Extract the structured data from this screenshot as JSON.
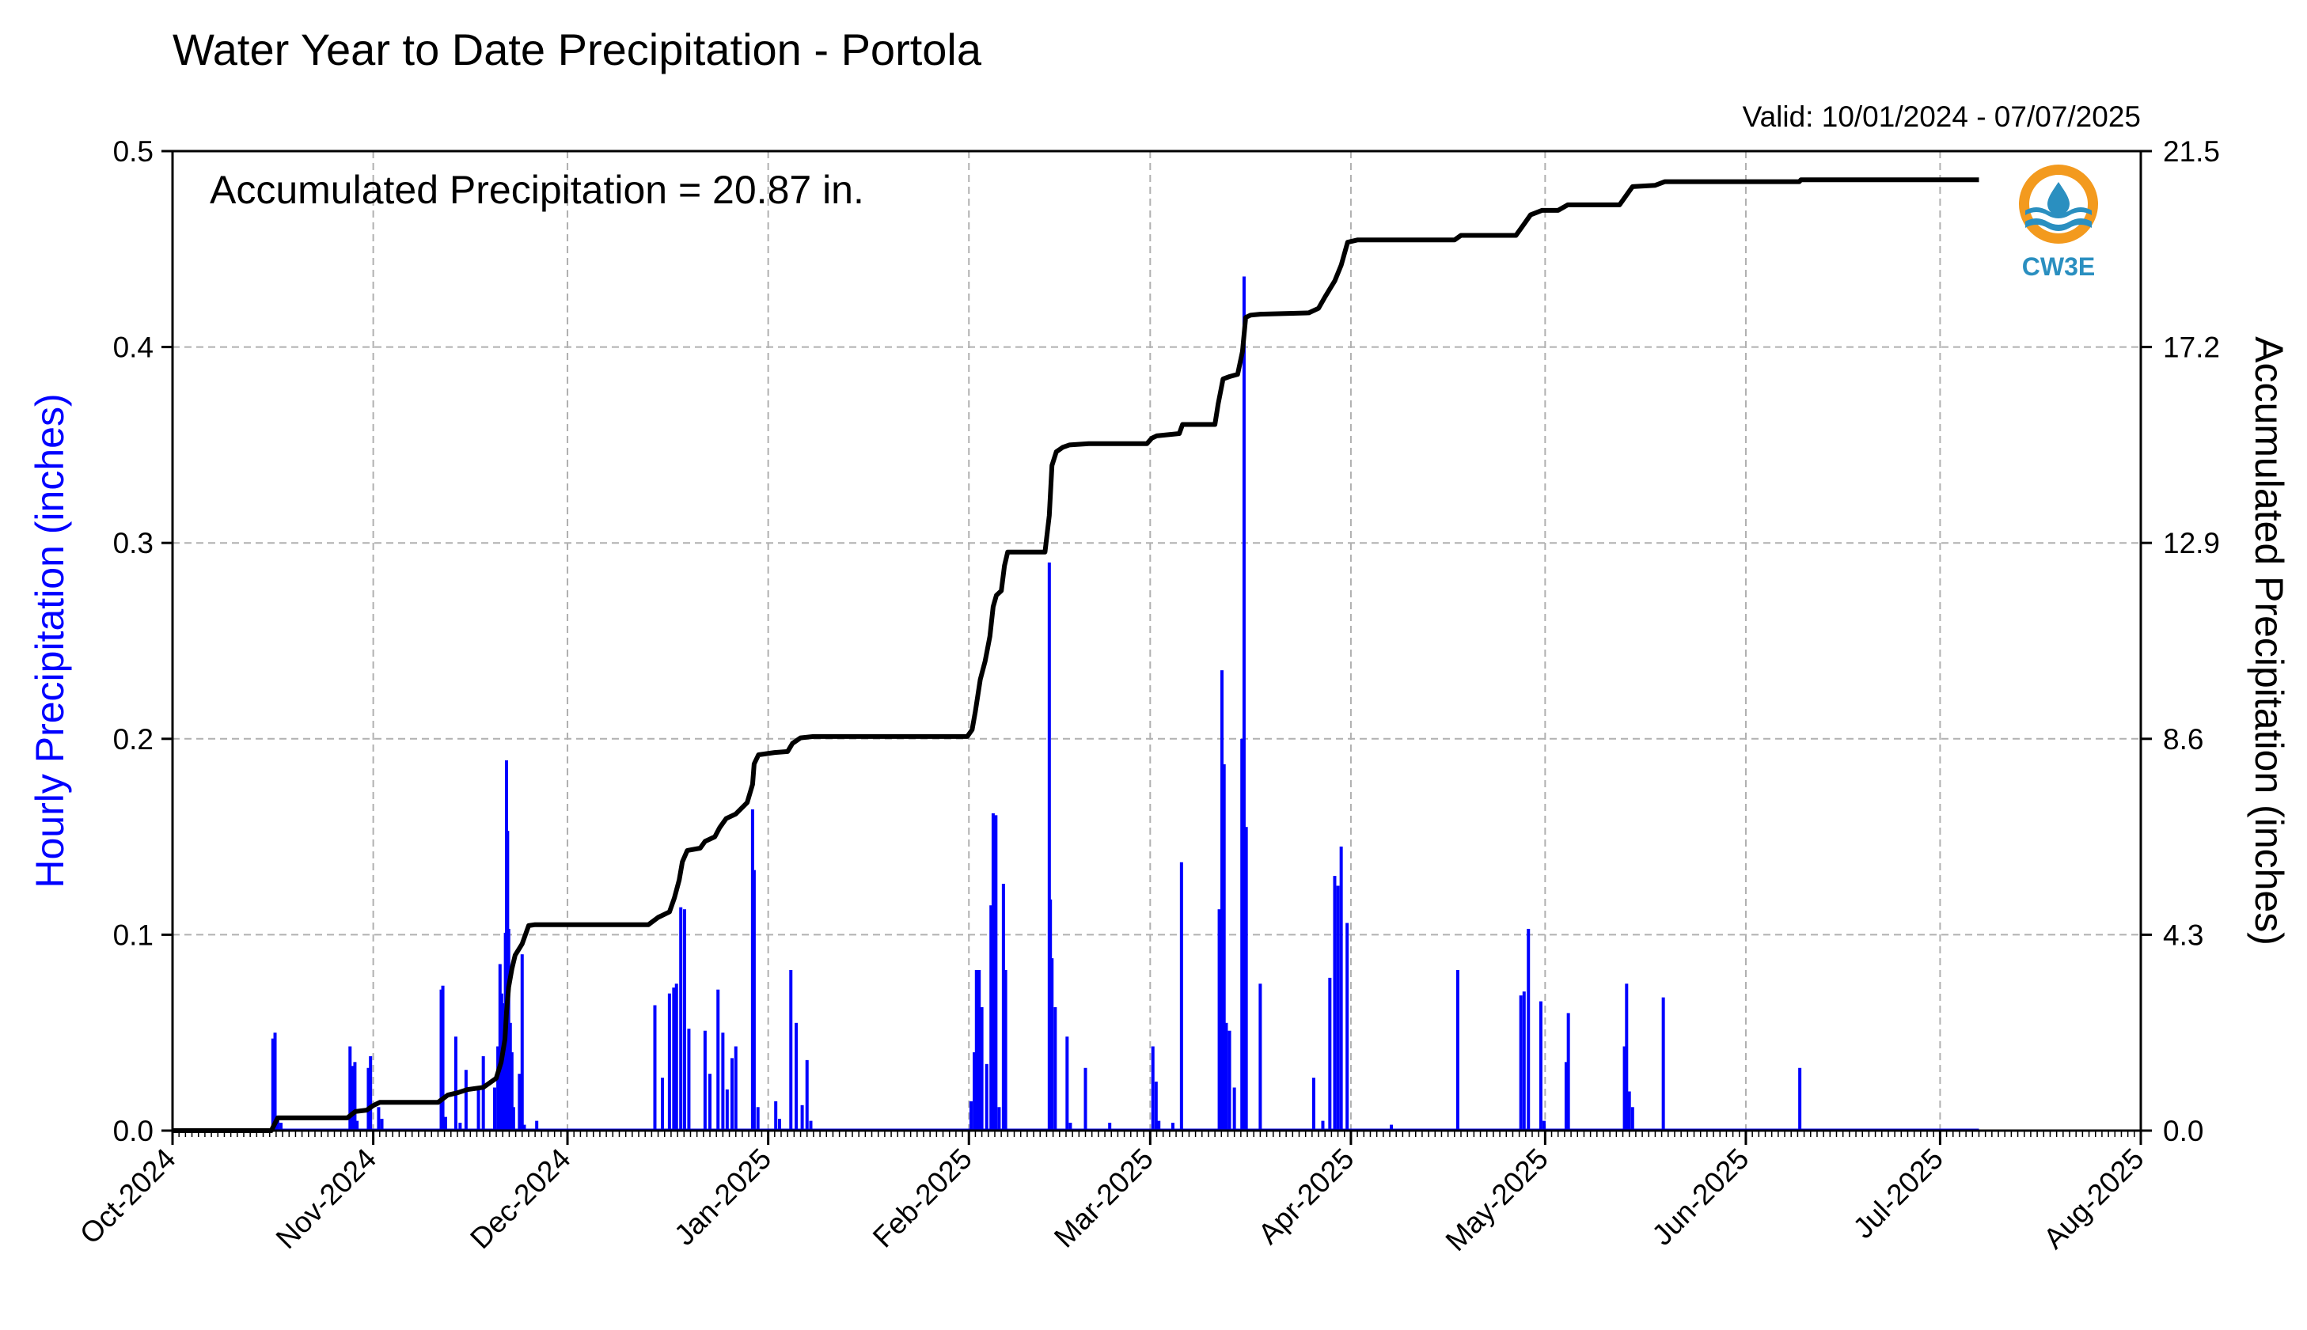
{
  "chart_data": {
    "type": "bar",
    "title": "Water Year to Date Precipitation - Portola",
    "valid_text": "Valid: 10/01/2024 - 07/07/2025",
    "annotation": "Accumulated Precipitation = 20.87 in.",
    "logo_text": "CW3E",
    "ylabel_left": "Hourly Precipitation (inches)",
    "ylabel_right": "Accumulated Precipitation (inches)",
    "grid": true,
    "xlim": [
      "2024-10-01",
      "2025-08-01"
    ],
    "ylim_left": [
      0,
      0.5
    ],
    "ylim_right": [
      0,
      21.5
    ],
    "left_ticks": [
      "0.0",
      "0.1",
      "0.2",
      "0.3",
      "0.4",
      "0.5"
    ],
    "right_ticks": [
      "0.0",
      "4.3",
      "8.6",
      "12.9",
      "17.2",
      "21.5"
    ],
    "x_ticks": [
      {
        "date": "2024-10-01",
        "label": "Oct-2024"
      },
      {
        "date": "2024-11-01",
        "label": "Nov-2024"
      },
      {
        "date": "2024-12-01",
        "label": "Dec-2024"
      },
      {
        "date": "2025-01-01",
        "label": "Jan-2025"
      },
      {
        "date": "2025-02-01",
        "label": "Feb-2025"
      },
      {
        "date": "2025-03-01",
        "label": "Mar-2025"
      },
      {
        "date": "2025-04-01",
        "label": "Apr-2025"
      },
      {
        "date": "2025-05-01",
        "label": "May-2025"
      },
      {
        "date": "2025-06-01",
        "label": "Jun-2025"
      },
      {
        "date": "2025-07-01",
        "label": "Jul-2025"
      },
      {
        "date": "2025-08-01",
        "label": "Aug-2025"
      }
    ],
    "colors": {
      "hourly": "#0000ff",
      "accumulated": "#000000",
      "grid": "#b0b0b0",
      "ylabel_left": "#0000ff",
      "logo_orange": "#f39a1e",
      "logo_blue": "#2a8fc0"
    },
    "series": [
      {
        "name": "Hourly Precipitation",
        "color": "#0000ff",
        "points": [
          [
            "2024-10-16T12",
            0.047
          ],
          [
            "2024-10-16T20",
            0.05
          ],
          [
            "2024-10-17T06",
            0.007
          ],
          [
            "2024-10-17T18",
            0.004
          ],
          [
            "2024-10-28T10",
            0.043
          ],
          [
            "2024-10-28T20",
            0.033
          ],
          [
            "2024-10-29T04",
            0.035
          ],
          [
            "2024-10-29T12",
            0.005
          ],
          [
            "2024-10-31T06",
            0.032
          ],
          [
            "2024-10-31T14",
            0.038
          ],
          [
            "2024-11-01T20",
            0.012
          ],
          [
            "2024-11-02T08",
            0.006
          ],
          [
            "2024-11-11T12",
            0.072
          ],
          [
            "2024-11-11T18",
            0.074
          ],
          [
            "2024-11-12T04",
            0.007
          ],
          [
            "2024-11-13T18",
            0.048
          ],
          [
            "2024-11-14T10",
            0.004
          ],
          [
            "2024-11-15T08",
            0.031
          ],
          [
            "2024-11-17T06",
            0.021
          ],
          [
            "2024-11-18T00",
            0.038
          ],
          [
            "2024-11-19T18",
            0.022
          ],
          [
            "2024-11-20T06",
            0.043
          ],
          [
            "2024-11-20T14",
            0.085
          ],
          [
            "2024-11-20T20",
            0.07
          ],
          [
            "2024-11-21T04",
            0.065
          ],
          [
            "2024-11-21T10",
            0.101
          ],
          [
            "2024-11-21T14",
            0.189
          ],
          [
            "2024-11-21T18",
            0.153
          ],
          [
            "2024-11-21T22",
            0.103
          ],
          [
            "2024-11-22T04",
            0.055
          ],
          [
            "2024-11-22T10",
            0.04
          ],
          [
            "2024-11-22T16",
            0.012
          ],
          [
            "2024-11-23T14",
            0.029
          ],
          [
            "2024-11-24T00",
            0.09
          ],
          [
            "2024-11-24T08",
            0.003
          ],
          [
            "2024-11-26T06",
            0.005
          ],
          [
            "2024-12-14T12",
            0.064
          ],
          [
            "2024-12-15T16",
            0.027
          ],
          [
            "2024-12-16T18",
            0.07
          ],
          [
            "2024-12-17T10",
            0.073
          ],
          [
            "2024-12-17T20",
            0.075
          ],
          [
            "2024-12-18T12",
            0.114
          ],
          [
            "2024-12-19T02",
            0.113
          ],
          [
            "2024-12-19T18",
            0.052
          ],
          [
            "2024-12-22T06",
            0.051
          ],
          [
            "2024-12-23T00",
            0.029
          ],
          [
            "2024-12-24T06",
            0.072
          ],
          [
            "2024-12-25T00",
            0.05
          ],
          [
            "2024-12-25T16",
            0.021
          ],
          [
            "2024-12-26T10",
            0.037
          ],
          [
            "2024-12-27T00",
            0.043
          ],
          [
            "2024-12-29T14",
            0.164
          ],
          [
            "2024-12-29T20",
            0.133
          ],
          [
            "2024-12-30T10",
            0.012
          ],
          [
            "2025-01-02T04",
            0.015
          ],
          [
            "2025-01-02T18",
            0.006
          ],
          [
            "2025-01-04T12",
            0.082
          ],
          [
            "2025-01-05T08",
            0.055
          ],
          [
            "2025-01-06T06",
            0.013
          ],
          [
            "2025-01-07T00",
            0.036
          ],
          [
            "2025-01-07T14",
            0.005
          ],
          [
            "2025-02-01T08",
            0.015
          ],
          [
            "2025-02-01T20",
            0.04
          ],
          [
            "2025-02-02T04",
            0.082
          ],
          [
            "2025-02-02T14",
            0.082
          ],
          [
            "2025-02-03T00",
            0.063
          ],
          [
            "2025-02-03T18",
            0.034
          ],
          [
            "2025-02-04T10",
            0.115
          ],
          [
            "2025-02-04T18",
            0.162
          ],
          [
            "2025-02-05T04",
            0.161
          ],
          [
            "2025-02-05T16",
            0.012
          ],
          [
            "2025-02-06T08",
            0.126
          ],
          [
            "2025-02-06T16",
            0.082
          ],
          [
            "2025-02-13T10",
            0.29
          ],
          [
            "2025-02-13T14",
            0.118
          ],
          [
            "2025-02-13T20",
            0.088
          ],
          [
            "2025-02-14T08",
            0.063
          ],
          [
            "2025-02-16T04",
            0.048
          ],
          [
            "2025-02-16T16",
            0.004
          ],
          [
            "2025-02-19T00",
            0.032
          ],
          [
            "2025-02-22T18",
            0.004
          ],
          [
            "2025-03-01T10",
            0.043
          ],
          [
            "2025-03-01T22",
            0.025
          ],
          [
            "2025-03-02T08",
            0.005
          ],
          [
            "2025-03-04T12",
            0.004
          ],
          [
            "2025-03-05T20",
            0.137
          ],
          [
            "2025-03-11T16",
            0.113
          ],
          [
            "2025-03-12T02",
            0.235
          ],
          [
            "2025-03-12T10",
            0.187
          ],
          [
            "2025-03-12T18",
            0.055
          ],
          [
            "2025-03-13T06",
            0.051
          ],
          [
            "2025-03-14T00",
            0.022
          ],
          [
            "2025-03-15T04",
            0.2
          ],
          [
            "2025-03-15T12",
            0.436
          ],
          [
            "2025-03-15T20",
            0.155
          ],
          [
            "2025-03-18T00",
            0.075
          ],
          [
            "2025-03-26T06",
            0.027
          ],
          [
            "2025-03-27T16",
            0.005
          ],
          [
            "2025-03-28T18",
            0.078
          ],
          [
            "2025-03-29T12",
            0.13
          ],
          [
            "2025-03-30T00",
            0.125
          ],
          [
            "2025-03-30T12",
            0.145
          ],
          [
            "2025-03-31T10",
            0.106
          ],
          [
            "2025-04-07T06",
            0.003
          ],
          [
            "2025-04-17T12",
            0.082
          ],
          [
            "2025-04-27T06",
            0.069
          ],
          [
            "2025-04-27T18",
            0.071
          ],
          [
            "2025-04-28T10",
            0.103
          ],
          [
            "2025-04-30T08",
            0.066
          ],
          [
            "2025-04-30T20",
            0.005
          ],
          [
            "2025-05-04T06",
            0.035
          ],
          [
            "2025-05-04T14",
            0.06
          ],
          [
            "2025-05-13T06",
            0.043
          ],
          [
            "2025-05-13T14",
            0.075
          ],
          [
            "2025-05-14T00",
            0.02
          ],
          [
            "2025-05-14T12",
            0.012
          ],
          [
            "2025-05-19T06",
            0.068
          ],
          [
            "2025-06-09T08",
            0.032
          ]
        ]
      },
      {
        "name": "Accumulated Precipitation",
        "color": "#000000",
        "points": [
          [
            "2024-10-01T00",
            0.0
          ],
          [
            "2024-10-16T06",
            0.0
          ],
          [
            "2024-10-17T06",
            0.28
          ],
          [
            "2024-10-28T00",
            0.28
          ],
          [
            "2024-10-29T06",
            0.42
          ],
          [
            "2024-10-31T00",
            0.45
          ],
          [
            "2024-11-01T00",
            0.55
          ],
          [
            "2024-11-02T00",
            0.62
          ],
          [
            "2024-11-11T00",
            0.62
          ],
          [
            "2024-11-12T12",
            0.78
          ],
          [
            "2024-11-14T00",
            0.83
          ],
          [
            "2024-11-15T12",
            0.9
          ],
          [
            "2024-11-18T00",
            0.95
          ],
          [
            "2024-11-20T00",
            1.15
          ],
          [
            "2024-11-20T18",
            1.5
          ],
          [
            "2024-11-21T08",
            2.0
          ],
          [
            "2024-11-21T14",
            2.6
          ],
          [
            "2024-11-21T22",
            3.15
          ],
          [
            "2024-11-22T10",
            3.55
          ],
          [
            "2024-11-22T22",
            3.85
          ],
          [
            "2024-11-24T00",
            4.1
          ],
          [
            "2024-11-25T00",
            4.5
          ],
          [
            "2024-11-26T00",
            4.52
          ],
          [
            "2024-12-13T12",
            4.52
          ],
          [
            "2024-12-15T00",
            4.68
          ],
          [
            "2024-12-16T18",
            4.8
          ],
          [
            "2024-12-17T12",
            5.1
          ],
          [
            "2024-12-18T06",
            5.5
          ],
          [
            "2024-12-18T18",
            5.9
          ],
          [
            "2024-12-19T12",
            6.15
          ],
          [
            "2024-12-21T12",
            6.2
          ],
          [
            "2024-12-22T06",
            6.35
          ],
          [
            "2024-12-23T18",
            6.45
          ],
          [
            "2024-12-24T12",
            6.65
          ],
          [
            "2024-12-25T12",
            6.85
          ],
          [
            "2024-12-27T00",
            6.95
          ],
          [
            "2024-12-28T18",
            7.2
          ],
          [
            "2024-12-29T14",
            7.6
          ],
          [
            "2024-12-29T20",
            8.05
          ],
          [
            "2024-12-30T12",
            8.25
          ],
          [
            "2025-01-02T00",
            8.3
          ],
          [
            "2025-01-04T00",
            8.32
          ],
          [
            "2025-01-04T18",
            8.5
          ],
          [
            "2025-01-06T00",
            8.62
          ],
          [
            "2025-01-08T00",
            8.65
          ],
          [
            "2025-01-31T18",
            8.65
          ],
          [
            "2025-02-01T12",
            8.8
          ],
          [
            "2025-02-02T00",
            9.2
          ],
          [
            "2025-02-02T18",
            9.9
          ],
          [
            "2025-02-03T12",
            10.3
          ],
          [
            "2025-02-04T06",
            10.85
          ],
          [
            "2025-02-04T18",
            11.5
          ],
          [
            "2025-02-05T06",
            11.75
          ],
          [
            "2025-02-06T00",
            11.85
          ],
          [
            "2025-02-06T12",
            12.4
          ],
          [
            "2025-02-07T00",
            12.7
          ],
          [
            "2025-02-12T18",
            12.7
          ],
          [
            "2025-02-13T10",
            13.5
          ],
          [
            "2025-02-13T20",
            14.6
          ],
          [
            "2025-02-14T12",
            14.9
          ],
          [
            "2025-02-15T12",
            15.0
          ],
          [
            "2025-02-16T12",
            15.05
          ],
          [
            "2025-02-19T12",
            15.08
          ],
          [
            "2025-02-28T12",
            15.08
          ],
          [
            "2025-03-01T06",
            15.2
          ],
          [
            "2025-03-02T00",
            15.25
          ],
          [
            "2025-03-05T12",
            15.3
          ],
          [
            "2025-03-06T00",
            15.5
          ],
          [
            "2025-03-11T00",
            15.5
          ],
          [
            "2025-03-11T12",
            15.95
          ],
          [
            "2025-03-12T06",
            16.5
          ],
          [
            "2025-03-13T06",
            16.55
          ],
          [
            "2025-03-14T12",
            16.6
          ],
          [
            "2025-03-15T06",
            17.1
          ],
          [
            "2025-03-15T18",
            17.85
          ],
          [
            "2025-03-16T12",
            17.9
          ],
          [
            "2025-03-18T00",
            17.92
          ],
          [
            "2025-03-25T12",
            17.95
          ],
          [
            "2025-03-27T00",
            18.05
          ],
          [
            "2025-03-28T00",
            18.3
          ],
          [
            "2025-03-29T12",
            18.65
          ],
          [
            "2025-03-30T12",
            19.0
          ],
          [
            "2025-03-31T12",
            19.5
          ],
          [
            "2025-04-02T00",
            19.55
          ],
          [
            "2025-04-17T00",
            19.55
          ],
          [
            "2025-04-18T00",
            19.65
          ],
          [
            "2025-04-26T12",
            19.65
          ],
          [
            "2025-04-27T18",
            19.9
          ],
          [
            "2025-04-28T18",
            20.1
          ],
          [
            "2025-04-30T12",
            20.2
          ],
          [
            "2025-05-03T00",
            20.2
          ],
          [
            "2025-05-04T12",
            20.32
          ],
          [
            "2025-05-12T12",
            20.32
          ],
          [
            "2025-05-13T12",
            20.52
          ],
          [
            "2025-05-14T12",
            20.72
          ],
          [
            "2025-05-18T00",
            20.75
          ],
          [
            "2025-05-19T12",
            20.83
          ],
          [
            "2025-06-09T06",
            20.83
          ],
          [
            "2025-06-09T12",
            20.87
          ],
          [
            "2025-07-07T00",
            20.87
          ]
        ]
      }
    ]
  }
}
